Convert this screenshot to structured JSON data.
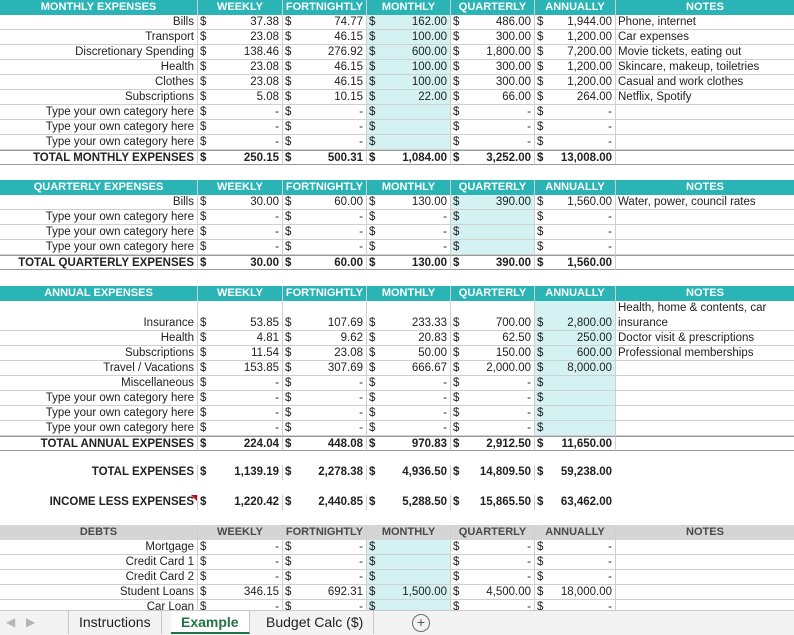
{
  "columns": [
    "WEEKLY",
    "FORTNIGHTLY",
    "MONTHLY",
    "QUARTERLY",
    "ANNUALLY",
    "NOTES"
  ],
  "currency": "$",
  "dash": "-",
  "sections": [
    {
      "title": "MONTHLY EXPENSES",
      "header_style": "teal",
      "highlight_col": 2,
      "rows": [
        {
          "label": "Bills",
          "values": [
            "37.38",
            "74.77",
            "162.00",
            "486.00",
            "1,944.00"
          ],
          "note": "Phone, internet"
        },
        {
          "label": "Transport",
          "values": [
            "23.08",
            "46.15",
            "100.00",
            "300.00",
            "1,200.00"
          ],
          "note": "Car expenses"
        },
        {
          "label": "Discretionary Spending",
          "values": [
            "138.46",
            "276.92",
            "600.00",
            "1,800.00",
            "7,200.00"
          ],
          "note": "Movie tickets, eating out"
        },
        {
          "label": "Health",
          "values": [
            "23.08",
            "46.15",
            "100.00",
            "300.00",
            "1,200.00"
          ],
          "note": "Skincare, makeup, toiletries"
        },
        {
          "label": "Clothes",
          "values": [
            "23.08",
            "46.15",
            "100.00",
            "300.00",
            "1,200.00"
          ],
          "note": "Casual and work clothes"
        },
        {
          "label": "Subscriptions",
          "values": [
            "5.08",
            "10.15",
            "22.00",
            "66.00",
            "264.00"
          ],
          "note": "Netflix, Spotify"
        },
        {
          "label": "Type your own category here",
          "values": [
            "-",
            "-",
            "",
            "-",
            "-"
          ],
          "note": ""
        },
        {
          "label": "Type your own category here",
          "values": [
            "-",
            "-",
            "",
            "-",
            "-"
          ],
          "note": ""
        },
        {
          "label": "Type your own category here",
          "values": [
            "-",
            "-",
            "",
            "-",
            "-"
          ],
          "note": ""
        }
      ],
      "total": {
        "label": "TOTAL MONTHLY EXPENSES",
        "values": [
          "250.15",
          "500.31",
          "1,084.00",
          "3,252.00",
          "13,008.00"
        ]
      }
    },
    {
      "title": "QUARTERLY EXPENSES",
      "header_style": "teal",
      "highlight_col": 3,
      "rows": [
        {
          "label": "Bills",
          "values": [
            "30.00",
            "60.00",
            "130.00",
            "390.00",
            "1,560.00"
          ],
          "note": "Water, power, council rates"
        },
        {
          "label": "Type your own category here",
          "values": [
            "-",
            "-",
            "-",
            "",
            "-"
          ],
          "note": ""
        },
        {
          "label": "Type your own category here",
          "values": [
            "-",
            "-",
            "-",
            "",
            "-"
          ],
          "note": ""
        },
        {
          "label": "Type your own category here",
          "values": [
            "-",
            "-",
            "-",
            "",
            "-"
          ],
          "note": ""
        }
      ],
      "total": {
        "label": "TOTAL QUARTERLY EXPENSES",
        "values": [
          "30.00",
          "60.00",
          "130.00",
          "390.00",
          "1,560.00"
        ]
      }
    },
    {
      "title": "ANNUAL EXPENSES",
      "header_style": "teal",
      "highlight_col": 4,
      "rows": [
        {
          "label": "Insurance",
          "values": [
            "53.85",
            "107.69",
            "233.33",
            "700.00",
            "2,800.00"
          ],
          "note": "Health, home & contents, car insurance",
          "tall": true
        },
        {
          "label": "Health",
          "values": [
            "4.81",
            "9.62",
            "20.83",
            "62.50",
            "250.00"
          ],
          "note": "Doctor visit & prescriptions"
        },
        {
          "label": "Subscriptions",
          "values": [
            "11.54",
            "23.08",
            "50.00",
            "150.00",
            "600.00"
          ],
          "note": "Professional memberships"
        },
        {
          "label": "Travel / Vacations",
          "values": [
            "153.85",
            "307.69",
            "666.67",
            "2,000.00",
            "8,000.00"
          ],
          "note": ""
        },
        {
          "label": "Miscellaneous",
          "values": [
            "-",
            "-",
            "-",
            "-",
            ""
          ],
          "note": ""
        },
        {
          "label": "Type your own category here",
          "values": [
            "-",
            "-",
            "-",
            "-",
            ""
          ],
          "note": ""
        },
        {
          "label": "Type your own category here",
          "values": [
            "-",
            "-",
            "-",
            "-",
            ""
          ],
          "note": ""
        },
        {
          "label": "Type your own category here",
          "values": [
            "-",
            "-",
            "-",
            "-",
            ""
          ],
          "note": ""
        }
      ],
      "total": {
        "label": "TOTAL ANNUAL EXPENSES",
        "values": [
          "224.04",
          "448.08",
          "970.83",
          "2,912.50",
          "11,650.00"
        ]
      }
    }
  ],
  "summary": [
    {
      "label": "TOTAL EXPENSES",
      "values": [
        "1,139.19",
        "2,278.38",
        "4,936.50",
        "14,809.50",
        "59,238.00"
      ]
    },
    {
      "label": "INCOME LESS EXPENSES",
      "values": [
        "1,220.42",
        "2,440.85",
        "5,288.50",
        "15,865.50",
        "63,462.00"
      ]
    }
  ],
  "debts": {
    "title": "DEBTS",
    "header_style": "gray",
    "highlight_col": 2,
    "rows": [
      {
        "label": "Mortgage",
        "values": [
          "-",
          "-",
          "",
          "-",
          "-"
        ],
        "note": ""
      },
      {
        "label": "Credit Card 1",
        "values": [
          "-",
          "-",
          "",
          "-",
          "-"
        ],
        "note": ""
      },
      {
        "label": "Credit Card 2",
        "values": [
          "-",
          "-",
          "",
          "-",
          "-"
        ],
        "note": ""
      },
      {
        "label": "Student Loans",
        "values": [
          "346.15",
          "692.31",
          "1,500.00",
          "4,500.00",
          "18,000.00"
        ],
        "note": ""
      },
      {
        "label": "Car Loan",
        "values": [
          "-",
          "-",
          "",
          "-",
          "-"
        ],
        "note": ""
      }
    ]
  },
  "tabs": [
    "Instructions",
    "Example",
    "Budget Calc ($)"
  ],
  "active_tab": "Example",
  "add_sheet_symbol": "+",
  "nav_prev": "◀",
  "nav_next": "▶",
  "colors": {
    "accent": "#2ab4b6",
    "highlight": "#d4f2f2",
    "debt_header": "#d5d5d5",
    "tab_active": "#217346"
  }
}
